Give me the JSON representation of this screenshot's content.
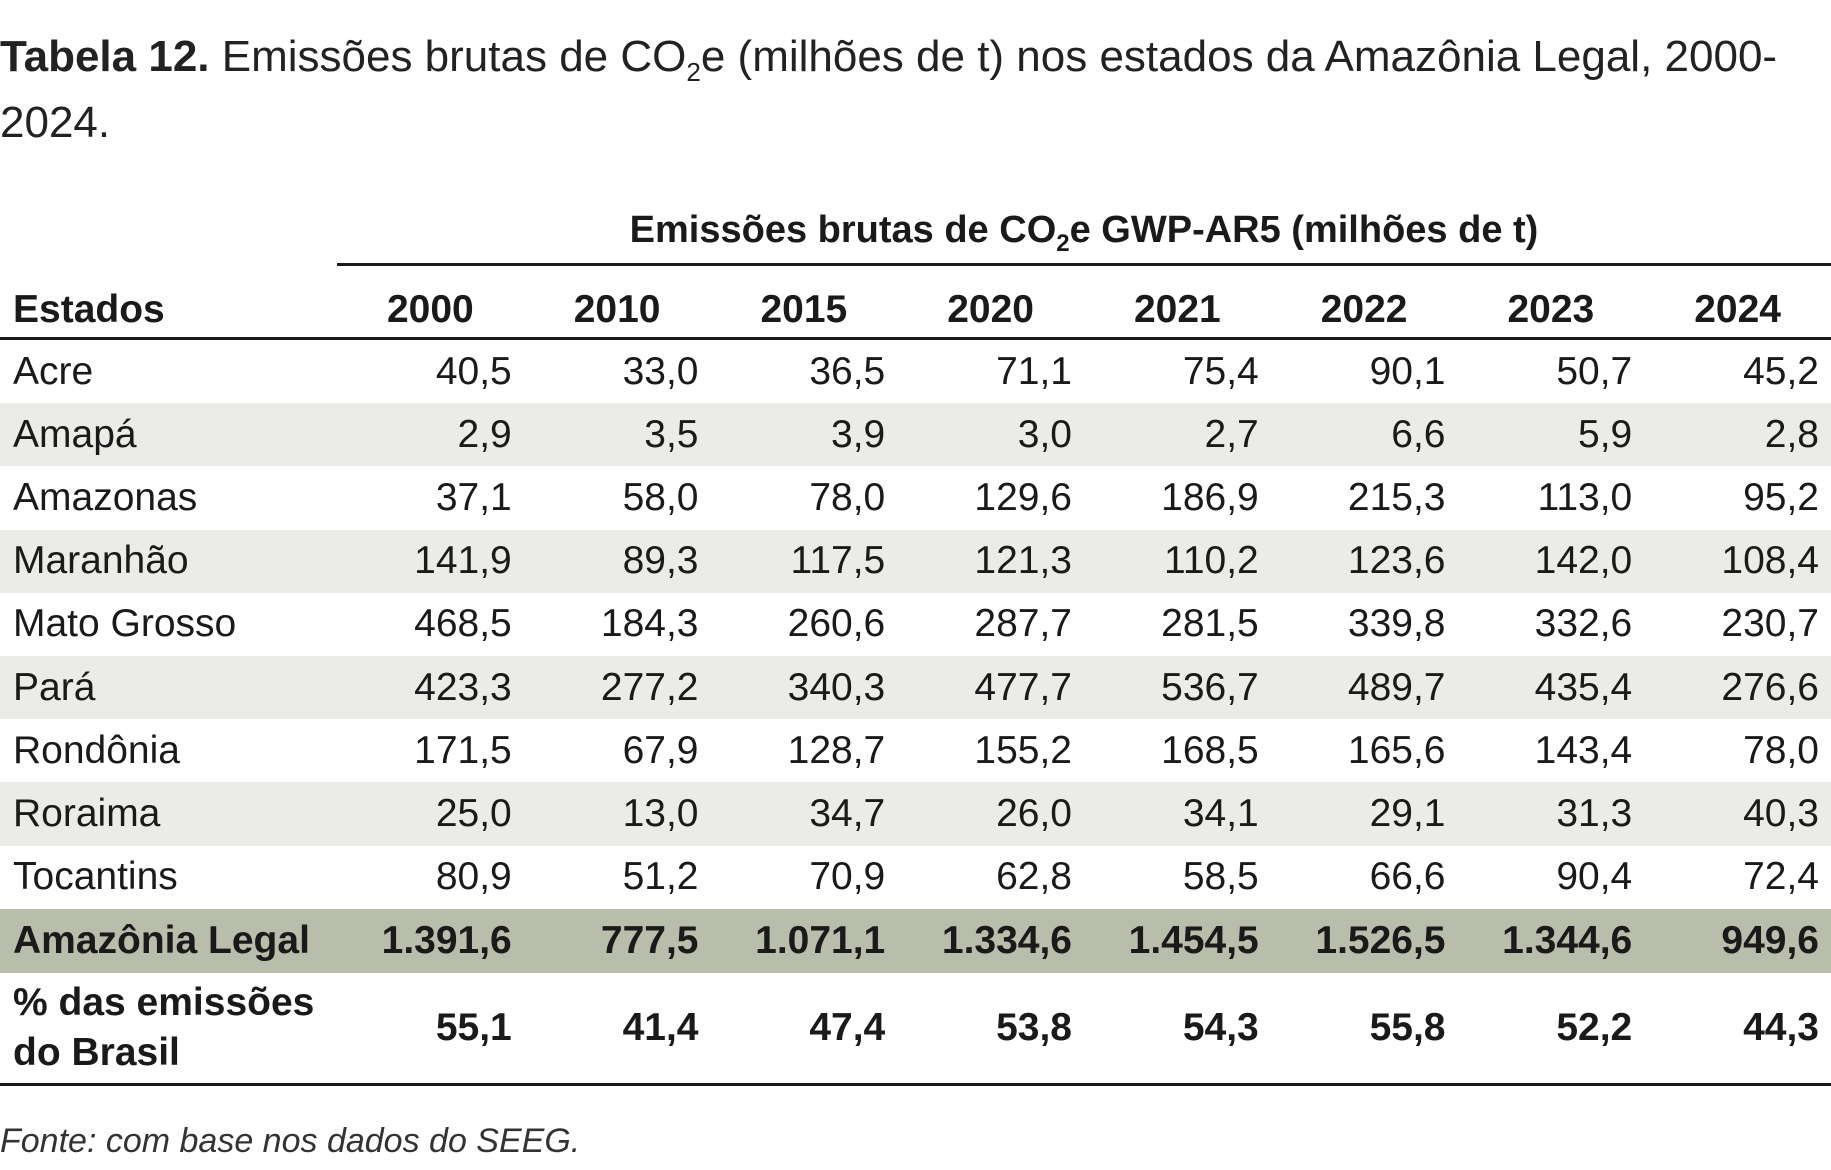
{
  "caption": {
    "label": "Tabela 12.",
    "text_before_sub": " Emissões brutas de CO",
    "sub": "2",
    "text_after_sub": "e (milhões de t) nos estados da Amazônia Legal, 2000-2024."
  },
  "table": {
    "group_header": {
      "before_sub": "Emissões brutas de CO",
      "sub": "2",
      "after_sub": "e GWP-AR5 (milhões de t)"
    },
    "state_header": "Estados",
    "years": [
      "2000",
      "2010",
      "2015",
      "2020",
      "2021",
      "2022",
      "2023",
      "2024"
    ],
    "rows": [
      {
        "state": "Acre",
        "values": [
          "40,5",
          "33,0",
          "36,5",
          "71,1",
          "75,4",
          "90,1",
          "50,7",
          "45,2"
        ]
      },
      {
        "state": "Amapá",
        "values": [
          "2,9",
          "3,5",
          "3,9",
          "3,0",
          "2,7",
          "6,6",
          "5,9",
          "2,8"
        ]
      },
      {
        "state": "Amazonas",
        "values": [
          "37,1",
          "58,0",
          "78,0",
          "129,6",
          "186,9",
          "215,3",
          "113,0",
          "95,2"
        ]
      },
      {
        "state": "Maranhão",
        "values": [
          "141,9",
          "89,3",
          "117,5",
          "121,3",
          "110,2",
          "123,6",
          "142,0",
          "108,4"
        ]
      },
      {
        "state": "Mato Grosso",
        "values": [
          "468,5",
          "184,3",
          "260,6",
          "287,7",
          "281,5",
          "339,8",
          "332,6",
          "230,7"
        ]
      },
      {
        "state": "Pará",
        "values": [
          "423,3",
          "277,2",
          "340,3",
          "477,7",
          "536,7",
          "489,7",
          "435,4",
          "276,6"
        ]
      },
      {
        "state": "Rondônia",
        "values": [
          "171,5",
          "67,9",
          "128,7",
          "155,2",
          "168,5",
          "165,6",
          "143,4",
          "78,0"
        ]
      },
      {
        "state": "Roraima",
        "values": [
          "25,0",
          "13,0",
          "34,7",
          "26,0",
          "34,1",
          "29,1",
          "31,3",
          "40,3"
        ]
      },
      {
        "state": "Tocantins",
        "values": [
          "80,9",
          "51,2",
          "70,9",
          "62,8",
          "58,5",
          "66,6",
          "90,4",
          "72,4"
        ]
      }
    ],
    "total": {
      "state": "Amazônia Legal",
      "values": [
        "1.391,6",
        "777,5",
        "1.071,1",
        "1.334,6",
        "1.454,5",
        "1.526,5",
        "1.344,6",
        "949,6"
      ]
    },
    "pct": {
      "state_line1": "% das emissões",
      "state_line2": "do Brasil",
      "values": [
        "55,1",
        "41,4",
        "47,4",
        "53,8",
        "54,3",
        "55,8",
        "52,2",
        "44,3"
      ]
    }
  },
  "source": "Fonte: com base nos dados do SEEG.",
  "colors": {
    "shaded_row": "#ebebe8",
    "total_row": "#b9bdab"
  }
}
